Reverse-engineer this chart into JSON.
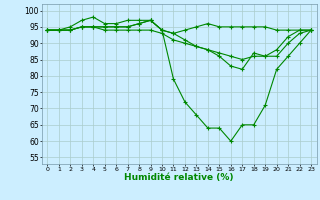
{
  "title": "",
  "xlabel": "Humidité relative (%)",
  "ylabel": "",
  "bg_color": "#cceeff",
  "grid_color": "#aacccc",
  "line_color": "#008800",
  "xlim": [
    -0.5,
    23.5
  ],
  "ylim": [
    53,
    102
  ],
  "yticks": [
    55,
    60,
    65,
    70,
    75,
    80,
    85,
    90,
    95,
    100
  ],
  "xticks": [
    0,
    1,
    2,
    3,
    4,
    5,
    6,
    7,
    8,
    9,
    10,
    11,
    12,
    13,
    14,
    15,
    16,
    17,
    18,
    19,
    20,
    21,
    22,
    23
  ],
  "series": [
    [
      94,
      94,
      95,
      97,
      98,
      96,
      96,
      97,
      97,
      97,
      94,
      93,
      94,
      95,
      96,
      95,
      95,
      95,
      95,
      95,
      94,
      94,
      94,
      94
    ],
    [
      94,
      94,
      94,
      95,
      95,
      94,
      94,
      94,
      94,
      94,
      93,
      91,
      90,
      89,
      88,
      87,
      86,
      85,
      86,
      86,
      86,
      90,
      93,
      94
    ],
    [
      94,
      94,
      94,
      95,
      95,
      95,
      95,
      95,
      96,
      97,
      94,
      93,
      91,
      89,
      88,
      86,
      83,
      82,
      87,
      86,
      88,
      92,
      94,
      94
    ],
    [
      94,
      94,
      94,
      95,
      95,
      95,
      95,
      95,
      96,
      97,
      94,
      79,
      72,
      68,
      64,
      64,
      60,
      65,
      65,
      71,
      82,
      86,
      90,
      94
    ]
  ]
}
